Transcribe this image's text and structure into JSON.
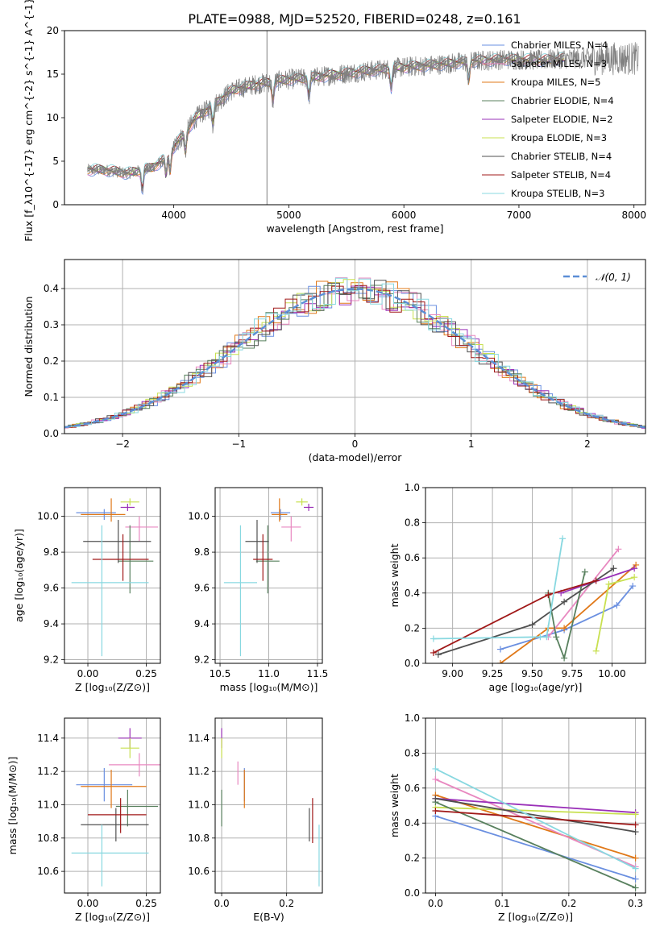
{
  "title": "PLATE=0988, MJD=52520, FIBERID=0248, z=0.161",
  "colors": {
    "blue": "#6a8fe0",
    "orange": "#e07818",
    "green": "#58805e",
    "pink": "#e888c0",
    "purple": "#9a30b8",
    "yellow": "#c8e050",
    "dark": "#505050",
    "red": "#a01818",
    "cyan": "#88d8e0",
    "grey": "#808080",
    "pdf": "#5b8ed6",
    "grid": "#b0b0b0"
  },
  "chart_data": [
    {
      "id": "spectrum",
      "type": "line",
      "xlabel": "wavelength [Angstrom, rest frame]",
      "ylabel": "Flux [f_λ10^{-17} erg cm^{-2} s^{-1} A^{-1}]",
      "xlim": [
        3050,
        8100
      ],
      "ylim": [
        0,
        20
      ],
      "xticks": [
        4000,
        5000,
        6000,
        7000,
        8000
      ],
      "yticks": [
        0,
        5,
        10,
        15,
        20
      ],
      "grid": false,
      "legend": "top-right",
      "continuum": {
        "x": [
          3250,
          3400,
          3600,
          3800,
          3900,
          4000,
          4100,
          4200,
          4300,
          4400,
          4500,
          4700,
          5000,
          5200,
          5500,
          5700,
          6000,
          6300,
          6600,
          6900,
          7200,
          7400
        ],
        "y": [
          4.0,
          4.0,
          3.6,
          4.2,
          5.0,
          6.6,
          8.3,
          10.1,
          11.0,
          12.0,
          13.1,
          13.8,
          14.4,
          14.6,
          15.1,
          15.4,
          15.8,
          16.1,
          16.5,
          16.7,
          16.6,
          16.8
        ]
      },
      "series": [
        {
          "name": "Chabrier MILES, N_SSP=4",
          "color": "blue"
        },
        {
          "name": "Salpeter MILES, N_SSP=3",
          "color": "pink"
        },
        {
          "name": "Kroupa MILES, N_SSP=5",
          "color": "orange"
        },
        {
          "name": "Chabrier ELODIE, N_SSP=4",
          "color": "green"
        },
        {
          "name": "Salpeter ELODIE, N_SSP=2",
          "color": "purple"
        },
        {
          "name": "Kroupa ELODIE, N_SSP=3",
          "color": "yellow"
        },
        {
          "name": "Chabrier STELIB, N_SSP=4",
          "color": "dark"
        },
        {
          "name": "Salpeter STELIB, N_SSP=4",
          "color": "red"
        },
        {
          "name": "Kroupa STELIB, N_SSP=3",
          "color": "cyan"
        }
      ]
    },
    {
      "id": "residuals",
      "type": "line",
      "xlabel": "(data-model)/error",
      "ylabel": "Normed distribution",
      "xlim": [
        -2.5,
        2.5
      ],
      "ylim": [
        0,
        0.48
      ],
      "xticks": [
        -2,
        -1,
        0,
        1,
        2
      ],
      "yticks": [
        0.0,
        0.1,
        0.2,
        0.3,
        0.4
      ],
      "grid": true,
      "legend": "top-right",
      "reference": "𝒩(0, 1)",
      "bin_width": 0.1
    },
    {
      "id": "age_vs_Z",
      "type": "scatter",
      "xlabel": "Z [log₁₀(Z/Z⊙)]",
      "ylabel": "age  [log₁₀(age/yr)]",
      "xlim": [
        -0.1,
        0.31
      ],
      "ylim": [
        9.18,
        10.16
      ],
      "xticks": [
        0.0,
        0.25
      ],
      "yticks": [
        9.2,
        9.4,
        9.6,
        9.8,
        10.0
      ],
      "grid": true,
      "points": [
        {
          "color": "blue",
          "x": 0.07,
          "xerr": [
            0.12,
            0.05
          ],
          "y": 10.02,
          "yerr": [
            0.04,
            0.02
          ]
        },
        {
          "color": "orange",
          "x": 0.1,
          "xerr": [
            0.13,
            0.06
          ],
          "y": 10.01,
          "yerr": [
            0.04,
            0.09
          ]
        },
        {
          "color": "pink",
          "x": 0.22,
          "xerr": [
            0.06,
            0.08
          ],
          "y": 9.94,
          "yerr": [
            0.08,
            0.06
          ]
        },
        {
          "color": "purple",
          "x": 0.17,
          "xerr": [
            0.03,
            0.03
          ],
          "y": 10.05,
          "yerr": [
            0.02,
            0.02
          ]
        },
        {
          "color": "yellow",
          "x": 0.18,
          "xerr": [
            0.04,
            0.04
          ],
          "y": 10.08,
          "yerr": [
            0.02,
            0.02
          ]
        },
        {
          "color": "green",
          "x": 0.18,
          "xerr": [
            0.05,
            0.1
          ],
          "y": 9.75,
          "yerr": [
            0.18,
            0.2
          ]
        },
        {
          "color": "dark",
          "x": 0.13,
          "xerr": [
            0.15,
            0.14
          ],
          "y": 9.86,
          "yerr": [
            0.12,
            0.12
          ]
        },
        {
          "color": "red",
          "x": 0.15,
          "xerr": [
            0.13,
            0.11
          ],
          "y": 9.76,
          "yerr": [
            0.12,
            0.14
          ]
        },
        {
          "color": "cyan",
          "x": 0.06,
          "xerr": [
            0.13,
            0.2
          ],
          "y": 9.63,
          "yerr": [
            0.41,
            0.32
          ]
        }
      ]
    },
    {
      "id": "age_vs_mass",
      "type": "scatter",
      "xlabel": "mass [log₁₀(M/M⊙)]",
      "ylabel": "",
      "xlim": [
        10.45,
        11.55
      ],
      "ylim": [
        9.18,
        10.16
      ],
      "xticks": [
        10.5,
        11.0,
        11.5
      ],
      "yticks": [
        9.2,
        9.4,
        9.6,
        9.8,
        10.0
      ],
      "grid": true,
      "points": [
        {
          "color": "blue",
          "x": 11.12,
          "xerr": [
            0.1,
            0.1
          ],
          "y": 10.02,
          "yerr": [
            0.04,
            0.02
          ]
        },
        {
          "color": "orange",
          "x": 11.11,
          "xerr": [
            0.08,
            0.08
          ],
          "y": 10.01,
          "yerr": [
            0.04,
            0.09
          ]
        },
        {
          "color": "pink",
          "x": 11.23,
          "xerr": [
            0.1,
            0.1
          ],
          "y": 9.94,
          "yerr": [
            0.08,
            0.06
          ]
        },
        {
          "color": "purple",
          "x": 11.41,
          "xerr": [
            0.05,
            0.05
          ],
          "y": 10.05,
          "yerr": [
            0.02,
            0.02
          ]
        },
        {
          "color": "yellow",
          "x": 11.34,
          "xerr": [
            0.06,
            0.06
          ],
          "y": 10.08,
          "yerr": [
            0.02,
            0.02
          ]
        },
        {
          "color": "green",
          "x": 10.99,
          "xerr": [
            0.12,
            0.12
          ],
          "y": 9.75,
          "yerr": [
            0.18,
            0.2
          ]
        },
        {
          "color": "dark",
          "x": 10.88,
          "xerr": [
            0.12,
            0.12
          ],
          "y": 9.86,
          "yerr": [
            0.12,
            0.12
          ]
        },
        {
          "color": "red",
          "x": 10.94,
          "xerr": [
            0.1,
            0.1
          ],
          "y": 9.76,
          "yerr": [
            0.12,
            0.14
          ]
        },
        {
          "color": "cyan",
          "x": 10.71,
          "xerr": [
            0.17,
            0.17
          ],
          "y": 9.63,
          "yerr": [
            0.41,
            0.32
          ]
        }
      ]
    },
    {
      "id": "weight_vs_age",
      "type": "line",
      "xlabel": "age  [log₁₀(age/yr)]",
      "ylabel": "mass weight",
      "xlim": [
        8.83,
        10.21
      ],
      "ylim": [
        0,
        1
      ],
      "xticks": [
        9.0,
        9.25,
        9.5,
        9.75,
        10.0
      ],
      "yticks": [
        0.0,
        0.2,
        0.4,
        0.6,
        0.8,
        1.0
      ],
      "grid": true,
      "series": [
        {
          "color": "blue",
          "x": [
            9.3,
            9.7,
            10.03,
            10.13
          ],
          "y": [
            0.08,
            0.19,
            0.33,
            0.44
          ]
        },
        {
          "color": "orange",
          "x": [
            9.3,
            9.6,
            9.7,
            10.15
          ],
          "y": [
            0.0,
            0.2,
            0.2,
            0.56
          ]
        },
        {
          "color": "pink",
          "x": [
            9.6,
            10.04
          ],
          "y": [
            0.15,
            0.65
          ]
        },
        {
          "color": "purple",
          "x": [
            9.68,
            10.14
          ],
          "y": [
            0.4,
            0.54
          ]
        },
        {
          "color": "yellow",
          "x": [
            9.9,
            9.98,
            10.14
          ],
          "y": [
            0.07,
            0.45,
            0.49
          ]
        },
        {
          "color": "green",
          "x": [
            9.6,
            9.65,
            9.7,
            9.83
          ],
          "y": [
            0.4,
            0.15,
            0.03,
            0.52
          ]
        },
        {
          "color": "dark",
          "x": [
            8.91,
            9.5,
            9.7,
            10.01
          ],
          "y": [
            0.05,
            0.22,
            0.35,
            0.54
          ]
        },
        {
          "color": "red",
          "x": [
            8.88,
            9.6,
            9.9
          ],
          "y": [
            0.06,
            0.39,
            0.47
          ]
        },
        {
          "color": "cyan",
          "x": [
            8.88,
            9.55,
            9.59,
            9.69
          ],
          "y": [
            0.14,
            0.15,
            0.15,
            0.71
          ]
        }
      ]
    },
    {
      "id": "mass_vs_Z",
      "type": "scatter",
      "xlabel": "Z [log₁₀(Z/Z⊙)]",
      "ylabel": "mass [log₁₀(M/M⊙)]",
      "xlim": [
        -0.1,
        0.31
      ],
      "ylim": [
        10.47,
        11.52
      ],
      "xticks": [
        0.0,
        0.25
      ],
      "yticks": [
        10.6,
        10.8,
        11.0,
        11.2,
        11.4
      ],
      "grid": true,
      "points": [
        {
          "color": "blue",
          "x": 0.07,
          "xerr": [
            0.12,
            0.12
          ],
          "y": 11.12,
          "yerr": [
            0.1,
            0.1
          ]
        },
        {
          "color": "orange",
          "x": 0.1,
          "xerr": [
            0.13,
            0.15
          ],
          "y": 11.11,
          "yerr": [
            0.13,
            0.1
          ]
        },
        {
          "color": "pink",
          "x": 0.22,
          "xerr": [
            0.13,
            0.09
          ],
          "y": 11.24,
          "yerr": [
            0.07,
            0.07
          ]
        },
        {
          "color": "purple",
          "x": 0.18,
          "xerr": [
            0.05,
            0.05
          ],
          "y": 11.4,
          "yerr": [
            0.06,
            0.06
          ]
        },
        {
          "color": "yellow",
          "x": 0.18,
          "xerr": [
            0.04,
            0.04
          ],
          "y": 11.34,
          "yerr": [
            0.06,
            0.06
          ]
        },
        {
          "color": "green",
          "x": 0.17,
          "xerr": [
            0.05,
            0.13
          ],
          "y": 10.99,
          "yerr": [
            0.12,
            0.1
          ]
        },
        {
          "color": "dark",
          "x": 0.12,
          "xerr": [
            0.15,
            0.14
          ],
          "y": 10.88,
          "yerr": [
            0.1,
            0.1
          ]
        },
        {
          "color": "red",
          "x": 0.14,
          "xerr": [
            0.14,
            0.11
          ],
          "y": 10.94,
          "yerr": [
            0.11,
            0.1
          ]
        },
        {
          "color": "cyan",
          "x": 0.06,
          "xerr": [
            0.13,
            0.2
          ],
          "y": 10.71,
          "yerr": [
            0.2,
            0.17
          ]
        }
      ]
    },
    {
      "id": "mass_vs_ebv",
      "type": "scatter",
      "xlabel": "E(B-V)",
      "ylabel": "",
      "xlim": [
        -0.02,
        0.31
      ],
      "ylim": [
        10.47,
        11.52
      ],
      "xticks": [
        0.0,
        0.2
      ],
      "yticks": [
        10.6,
        10.8,
        11.0,
        11.2,
        11.4
      ],
      "grid": true,
      "points": [
        {
          "color": "blue",
          "x": 0.07,
          "xerr": [
            0,
            0
          ],
          "y": 11.12,
          "yerr": [
            0.1,
            0.1
          ]
        },
        {
          "color": "orange",
          "x": 0.07,
          "xerr": [
            0,
            0
          ],
          "y": 11.11,
          "yerr": [
            0.13,
            0.1
          ]
        },
        {
          "color": "pink",
          "x": 0.05,
          "xerr": [
            0,
            0
          ],
          "y": 11.19,
          "yerr": [
            0.07,
            0.07
          ]
        },
        {
          "color": "purple",
          "x": 0.0,
          "xerr": [
            0,
            0
          ],
          "y": 11.4,
          "yerr": [
            0.06,
            0.06
          ]
        },
        {
          "color": "yellow",
          "x": 0.0,
          "xerr": [
            0,
            0
          ],
          "y": 11.34,
          "yerr": [
            0.06,
            0.06
          ]
        },
        {
          "color": "green",
          "x": 0.0,
          "xerr": [
            0,
            0
          ],
          "y": 10.99,
          "yerr": [
            0.12,
            0.1
          ]
        },
        {
          "color": "dark",
          "x": 0.27,
          "xerr": [
            0,
            0
          ],
          "y": 10.88,
          "yerr": [
            0.1,
            0.1
          ]
        },
        {
          "color": "red",
          "x": 0.28,
          "xerr": [
            0,
            0
          ],
          "y": 10.91,
          "yerr": [
            0.14,
            0.13
          ]
        },
        {
          "color": "cyan",
          "x": 0.3,
          "xerr": [
            0,
            0
          ],
          "y": 10.71,
          "yerr": [
            0.2,
            0.17
          ]
        }
      ]
    },
    {
      "id": "weight_vs_Z",
      "type": "line",
      "xlabel": "Z [log₁₀(Z/Z⊙)]",
      "ylabel": "mass weight",
      "xlim": [
        -0.015,
        0.315
      ],
      "ylim": [
        0,
        1
      ],
      "xticks": [
        0.0,
        0.1,
        0.2,
        0.3
      ],
      "yticks": [
        0.0,
        0.2,
        0.4,
        0.6,
        0.8,
        1.0
      ],
      "grid": true,
      "series": [
        {
          "color": "blue",
          "x": [
            0.0,
            0.3
          ],
          "y": [
            0.44,
            0.08
          ]
        },
        {
          "color": "orange",
          "x": [
            0.0,
            0.3
          ],
          "y": [
            0.56,
            0.2
          ]
        },
        {
          "color": "pink",
          "x": [
            0.0,
            0.3
          ],
          "y": [
            0.65,
            0.15
          ]
        },
        {
          "color": "purple",
          "x": [
            0.0,
            0.3
          ],
          "y": [
            0.54,
            0.46
          ]
        },
        {
          "color": "yellow",
          "x": [
            0.0,
            0.3
          ],
          "y": [
            0.49,
            0.45
          ]
        },
        {
          "color": "green",
          "x": [
            0.0,
            0.3
          ],
          "y": [
            0.52,
            0.03
          ]
        },
        {
          "color": "dark",
          "x": [
            0.0,
            0.3
          ],
          "y": [
            0.54,
            0.35
          ]
        },
        {
          "color": "red",
          "x": [
            0.0,
            0.3
          ],
          "y": [
            0.47,
            0.39
          ]
        },
        {
          "color": "cyan",
          "x": [
            0.0,
            0.3
          ],
          "y": [
            0.71,
            0.14
          ]
        }
      ]
    }
  ]
}
